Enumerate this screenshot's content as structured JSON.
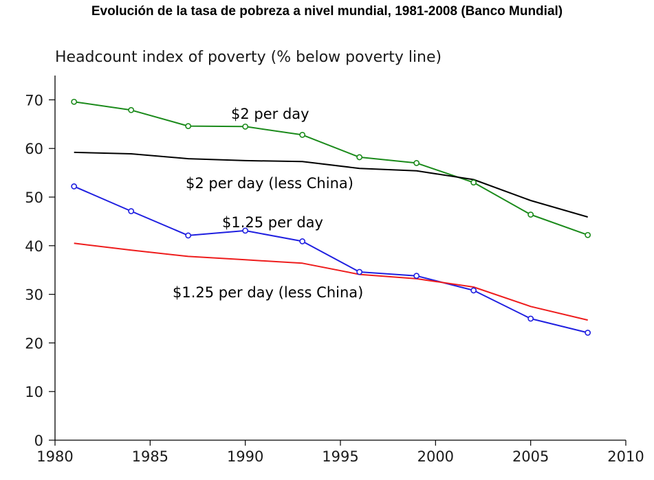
{
  "chart_data": {
    "type": "line",
    "title": "Evolución de la tasa de pobreza a nivel mundial, 1981-2008 (Banco Mundial)",
    "ylabel": "Headcount index of poverty (% below poverty line)",
    "xlabel": "",
    "xlim": [
      1980,
      2010
    ],
    "ylim": [
      0,
      75
    ],
    "xticks": [
      "1980",
      "1985",
      "1990",
      "1995",
      "2000",
      "2005",
      "2010"
    ],
    "yticks": [
      "0",
      "10",
      "20",
      "30",
      "40",
      "50",
      "60",
      "70"
    ],
    "grid": false,
    "series": [
      {
        "name": "$2 per day",
        "color": "#1a8a1a",
        "markers": true,
        "x": [
          1981,
          1984,
          1987,
          1990,
          1993,
          1996,
          1999,
          2002,
          2005,
          2008
        ],
        "y": [
          69.6,
          67.9,
          64.6,
          64.5,
          62.8,
          58.2,
          57.0,
          53.0,
          46.4,
          42.2
        ]
      },
      {
        "name": "$2 per day (less China)",
        "color": "#000000",
        "markers": false,
        "x": [
          1981,
          1984,
          1987,
          1990,
          1993,
          1996,
          1999,
          2002,
          2005,
          2008
        ],
        "y": [
          59.2,
          58.9,
          57.9,
          57.5,
          57.3,
          55.9,
          55.4,
          53.6,
          49.3,
          45.9
        ]
      },
      {
        "name": "$1.25 per day",
        "color": "#1f1fe0",
        "markers": true,
        "x": [
          1981,
          1984,
          1987,
          1990,
          1993,
          1996,
          1999,
          2002,
          2005,
          2008
        ],
        "y": [
          52.2,
          47.1,
          42.1,
          43.1,
          40.9,
          34.6,
          33.8,
          30.8,
          25.0,
          22.1
        ]
      },
      {
        "name": "$1.25 per day (less China)",
        "color": "#ee1c1c",
        "markers": false,
        "x": [
          1981,
          1984,
          1987,
          1990,
          1993,
          1996,
          1999,
          2002,
          2005,
          2008
        ],
        "y": [
          40.5,
          39.1,
          37.8,
          37.1,
          36.4,
          34.1,
          33.2,
          31.5,
          27.5,
          24.7
        ]
      }
    ],
    "annotations": [
      "$2 per day",
      "$2 per day (less China)",
      "$1.25 per day",
      "$1.25 per day (less China)"
    ]
  }
}
